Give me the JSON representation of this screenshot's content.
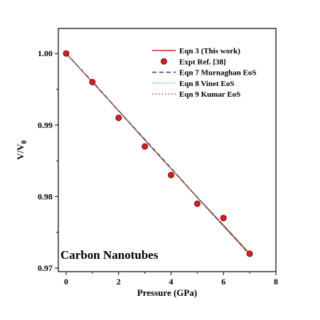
{
  "chart_data": {
    "type": "line",
    "xlabel": "Pressure (GPa)",
    "ylabel": {
      "main": "V/V",
      "sub": "0"
    },
    "annotation": "Carbon Nanotubes",
    "xlim": [
      -0.3,
      8
    ],
    "ylim": [
      0.9695,
      1.0035
    ],
    "xticks": [
      0,
      2,
      4,
      6,
      8
    ],
    "yticks": [
      0.97,
      0.98,
      0.99,
      1.0
    ],
    "ytick_labels": [
      "0.97",
      "0.98",
      "0.99",
      "1.00"
    ],
    "legend_position": "top-right",
    "series": [
      {
        "name": "Eqn 3 (This work)",
        "kind": "line",
        "style": "solid",
        "color": "#d62020",
        "x": [
          0,
          1,
          2,
          3,
          4,
          5,
          6,
          7
        ],
        "y": [
          1.0,
          0.996,
          0.992,
          0.9879,
          0.9839,
          0.9799,
          0.976,
          0.972
        ]
      },
      {
        "name": "Expt  Ref. [38]",
        "kind": "scatter",
        "color": "#d62020",
        "x": [
          0,
          1,
          2,
          3,
          4,
          5,
          6,
          7
        ],
        "y": [
          1.0,
          0.996,
          0.991,
          0.987,
          0.983,
          0.979,
          0.977,
          0.972
        ]
      },
      {
        "name": "Eqn 7 Murnaghan EoS",
        "kind": "line",
        "style": "dashed",
        "color": "#1f2a8a",
        "x": [
          0,
          1,
          2,
          3,
          4,
          5,
          6,
          7
        ],
        "y": [
          1.0,
          0.9961,
          0.992,
          0.988,
          0.984,
          0.9799,
          0.9759,
          0.9719
        ]
      },
      {
        "name": "Eqn 8 Vinet EoS",
        "kind": "line",
        "style": "dotted",
        "color": "#1a9a1a",
        "x": [
          0,
          1,
          2,
          3,
          4,
          5,
          6,
          7
        ],
        "y": [
          1.0,
          0.996,
          0.9919,
          0.9879,
          0.9839,
          0.9799,
          0.9759,
          0.9719
        ]
      },
      {
        "name": "Eqn 9 Kumar EoS",
        "kind": "line",
        "style": "dashdot",
        "color": "#c0392b",
        "x": [
          0,
          1,
          2,
          3,
          4,
          5,
          6,
          7
        ],
        "y": [
          1.0,
          0.996,
          0.992,
          0.9879,
          0.9839,
          0.9798,
          0.9758,
          0.9718
        ]
      }
    ]
  }
}
